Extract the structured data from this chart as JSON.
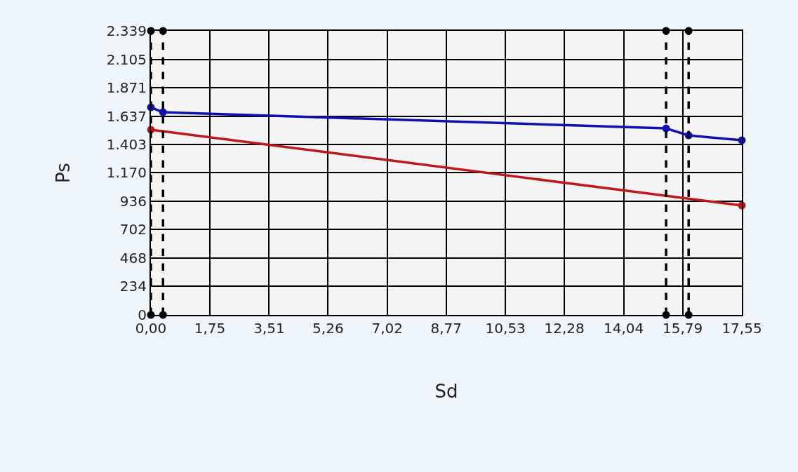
{
  "chart_data": {
    "type": "line",
    "xlabel": "Sd",
    "ylabel": "Ps",
    "xlim": [
      0,
      17.55
    ],
    "xticks": [
      {
        "value": 0,
        "label": "0,00"
      },
      {
        "value": 1.75,
        "label": "1,75"
      },
      {
        "value": 3.51,
        "label": "3,51"
      },
      {
        "value": 5.26,
        "label": "5,26"
      },
      {
        "value": 7.02,
        "label": "7,02"
      },
      {
        "value": 8.77,
        "label": "8,77"
      },
      {
        "value": 10.53,
        "label": "10,53"
      },
      {
        "value": 12.28,
        "label": "12,28"
      },
      {
        "value": 14.04,
        "label": "14,04"
      },
      {
        "value": 15.79,
        "label": "15,79"
      },
      {
        "value": 17.55,
        "label": "17,55"
      }
    ],
    "ylim": [
      0,
      2339
    ],
    "yticks": [
      0,
      234,
      468,
      702,
      936,
      {
        "value": 1170,
        "label": "1.170"
      },
      {
        "value": 1403,
        "label": "1.403"
      },
      {
        "value": 1637,
        "label": "1.637"
      },
      {
        "value": 1871,
        "label": "1.871"
      },
      {
        "value": 2105,
        "label": "2.105"
      },
      {
        "value": 2339,
        "label": "2.339"
      }
    ],
    "grid": true,
    "marker": "circle",
    "series": [
      {
        "color": "#1010b0",
        "x": [
          0,
          0.36,
          15.3,
          15.97,
          17.55
        ],
        "values": [
          1709,
          1669,
          1536,
          1478,
          1438
        ]
      },
      {
        "color": "#c01818",
        "x": [
          0,
          17.55
        ],
        "values": [
          1525,
          901
        ]
      },
      {
        "type": "scatter",
        "color": "#000000",
        "x": [
          0,
          0,
          0.36,
          0.36,
          15.3,
          15.3,
          15.97,
          15.97
        ],
        "values": [
          0,
          2339,
          0,
          2339,
          0,
          2339,
          0,
          2339
        ]
      }
    ],
    "ref_lines": [
      {
        "axis": "x",
        "value": 0,
        "color": "#000000",
        "line_style": "dashed"
      },
      {
        "axis": "x",
        "value": 0.36,
        "color": "#000000",
        "line_style": "dashed"
      },
      {
        "axis": "x",
        "value": 15.3,
        "color": "#000000",
        "line_style": "dashed"
      },
      {
        "axis": "x",
        "value": 15.97,
        "color": "#000000",
        "line_style": "dashed"
      }
    ]
  }
}
